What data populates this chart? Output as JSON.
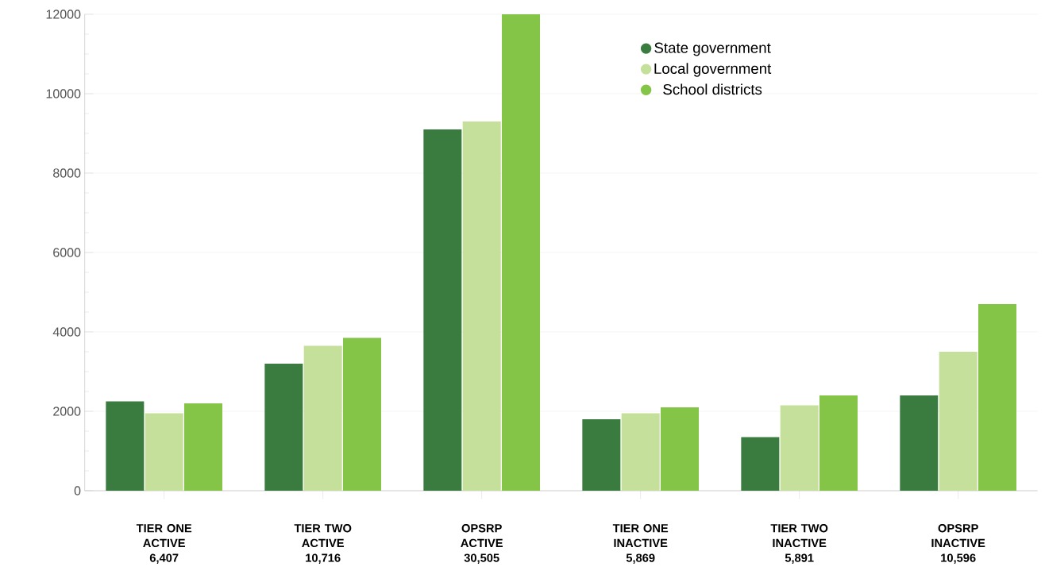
{
  "chart_data": {
    "type": "bar",
    "categories": [
      "TIER ONE ACTIVE 6,407",
      "TIER TWO ACTIVE 10,716",
      "OPSRP ACTIVE 30,505",
      "TIER ONE INACTIVE 5,869",
      "TIER TWO INACTIVE 5,891",
      "OPSRP INACTIVE 10,596"
    ],
    "series": [
      {
        "name": "State government",
        "color": "#3a7b40",
        "values": [
          2250,
          3200,
          9100,
          1800,
          1350,
          2400
        ]
      },
      {
        "name": "Local government",
        "color": "#c4e09b",
        "values": [
          1950,
          3650,
          9300,
          1950,
          2150,
          3500
        ]
      },
      {
        "name": "School districts",
        "color": "#84c446",
        "values": [
          2200,
          3850,
          12000,
          2100,
          2400,
          4700
        ]
      }
    ],
    "ylim": [
      0,
      12000
    ],
    "yticks": [
      0,
      2000,
      4000,
      6000,
      8000,
      10000,
      12000
    ],
    "grid": "y",
    "legend": "top right",
    "marker": "circle"
  }
}
